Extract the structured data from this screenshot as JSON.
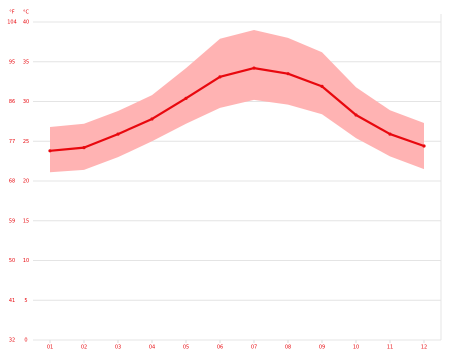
{
  "chart_data": {
    "type": "band-line",
    "ylabel": "°C",
    "y2label": "°F",
    "categories": [
      "01",
      "02",
      "03",
      "04",
      "05",
      "06",
      "07",
      "08",
      "09",
      "10",
      "11",
      "12"
    ],
    "series": [
      {
        "color": "#e8080e",
        "values": [
          23.8,
          24.2,
          25.9,
          27.8,
          30.4,
          33.1,
          34.2,
          33.5,
          31.9,
          28.3,
          25.9,
          24.4
        ]
      },
      {
        "color": "#ffb3b3",
        "values": [
          26.8,
          27.2,
          28.8,
          30.8,
          34.2,
          37.9,
          39.0,
          38.0,
          36.2,
          31.8,
          28.9,
          27.3
        ]
      },
      {
        "color": "#ffb3b3",
        "values": [
          21.1,
          21.4,
          23.0,
          25.0,
          27.2,
          29.2,
          30.2,
          29.6,
          28.4,
          25.4,
          23.1,
          21.5
        ]
      }
    ],
    "ylim": [
      0,
      40
    ],
    "yticks": [
      0,
      5,
      10,
      15,
      20,
      25,
      30,
      35,
      40
    ],
    "y2lim": [
      32,
      104
    ],
    "y2ticks": [
      32,
      41,
      50,
      59,
      68,
      77,
      86,
      95,
      104
    ],
    "grid": true
  }
}
